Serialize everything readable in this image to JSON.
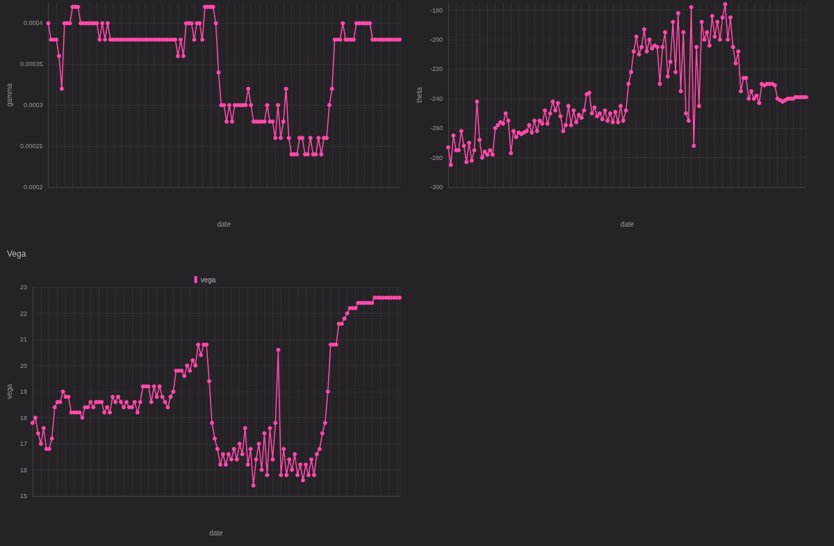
{
  "chart_data": [
    {
      "type": "line",
      "ylabel": "gamma",
      "xlabel": "date",
      "tick_labels": "y",
      "grid": true,
      "legend": false,
      "marker": "circle",
      "line_style": "solid",
      "ylim": [
        0.0002,
        0.000425
      ],
      "yticks": [
        0.0002,
        0.00025,
        0.0003,
        0.00035,
        0.0004
      ],
      "categories": [
        null,
        null,
        null,
        null,
        null,
        null,
        null,
        null,
        null,
        null,
        null,
        null,
        null,
        null,
        null,
        null,
        null,
        null,
        null,
        null,
        null,
        null,
        null,
        null,
        null,
        null,
        null,
        null,
        null,
        null,
        null,
        null,
        null,
        null,
        null,
        null,
        null,
        null,
        null,
        null,
        null,
        null,
        null,
        null,
        null,
        null,
        null,
        null,
        null,
        null,
        null,
        null,
        null,
        null,
        null,
        null,
        null,
        null,
        null,
        null,
        null,
        null,
        null,
        null,
        null,
        null,
        null,
        null,
        null,
        null,
        null,
        null,
        null,
        null,
        null,
        null,
        null,
        null,
        null,
        null,
        null,
        null,
        null,
        null,
        null,
        null,
        null,
        null,
        null,
        null,
        null,
        null,
        null,
        null,
        null,
        null,
        null,
        null,
        null,
        null,
        null,
        null,
        null,
        null,
        null,
        null,
        null,
        null,
        null,
        null,
        null,
        null,
        null,
        null,
        null,
        null,
        null,
        null,
        null,
        null,
        null,
        null,
        null,
        null,
        null,
        null,
        null,
        null,
        null,
        null,
        null
      ],
      "series": [
        {
          "color": "#ff4aa8",
          "values": [
            0.0004,
            0.00038,
            0.00038,
            0.00038,
            0.00036,
            0.00032,
            0.0004,
            0.0004,
            0.0004,
            0.00042,
            0.00042,
            0.00042,
            0.0004,
            0.0004,
            0.0004,
            0.0004,
            0.0004,
            0.0004,
            0.0004,
            0.00038,
            0.0004,
            0.00038,
            0.0004,
            0.00038,
            0.00038,
            0.00038,
            0.00038,
            0.00038,
            0.00038,
            0.00038,
            0.00038,
            0.00038,
            0.00038,
            0.00038,
            0.00038,
            0.00038,
            0.00038,
            0.00038,
            0.00038,
            0.00038,
            0.00038,
            0.00038,
            0.00038,
            0.00038,
            0.00038,
            0.00038,
            0.00038,
            0.00038,
            0.00036,
            0.00038,
            0.00036,
            0.0004,
            0.0004,
            0.0004,
            0.00038,
            0.0004,
            0.0004,
            0.00038,
            0.00042,
            0.00042,
            0.00042,
            0.00042,
            0.0004,
            0.00034,
            0.0003,
            0.0003,
            0.00028,
            0.0003,
            0.00028,
            0.0003,
            0.0003,
            0.0003,
            0.0003,
            0.0003,
            0.00032,
            0.0003,
            0.00028,
            0.00028,
            0.00028,
            0.00028,
            0.00028,
            0.0003,
            0.00028,
            0.00028,
            0.00026,
            0.0003,
            0.00026,
            0.00028,
            0.00032,
            0.00026,
            0.00024,
            0.00024,
            0.00024,
            0.00026,
            0.00026,
            0.00024,
            0.00024,
            0.00026,
            0.00024,
            0.00024,
            0.00026,
            0.00024,
            0.00026,
            0.00026,
            0.0003,
            0.00032,
            0.00038,
            0.00038,
            0.00038,
            0.0004,
            0.00038,
            0.00038,
            0.00038,
            0.00038,
            0.0004,
            0.0004,
            0.0004,
            0.0004,
            0.0004,
            0.0004,
            0.00038,
            0.00038,
            0.00038,
            0.00038,
            0.00038,
            0.00038,
            0.00038,
            0.00038,
            0.00038,
            0.00038,
            0.00038
          ]
        }
      ]
    },
    {
      "type": "line",
      "ylabel": "theta",
      "xlabel": "date",
      "tick_labels": "y",
      "grid": true,
      "legend": false,
      "marker": "circle",
      "line_style": "solid",
      "ylim": [
        -300,
        -175
      ],
      "yticks": [
        -300,
        -280,
        -260,
        -240,
        -220,
        -200,
        -180
      ],
      "categories": [
        null,
        null,
        null,
        null,
        null,
        null,
        null,
        null,
        null,
        null,
        null,
        null,
        null,
        null,
        null,
        null,
        null,
        null,
        null,
        null,
        null,
        null,
        null,
        null,
        null,
        null,
        null,
        null,
        null,
        null,
        null,
        null,
        null,
        null,
        null,
        null,
        null,
        null,
        null,
        null,
        null,
        null,
        null,
        null,
        null,
        null,
        null,
        null,
        null,
        null,
        null,
        null,
        null,
        null,
        null,
        null,
        null,
        null,
        null,
        null,
        null,
        null,
        null,
        null,
        null,
        null,
        null,
        null,
        null,
        null,
        null,
        null,
        null,
        null,
        null,
        null,
        null,
        null,
        null,
        null,
        null,
        null,
        null,
        null,
        null,
        null,
        null,
        null,
        null,
        null,
        null,
        null,
        null,
        null,
        null,
        null,
        null,
        null,
        null,
        null,
        null,
        null,
        null,
        null,
        null,
        null,
        null,
        null,
        null,
        null,
        null,
        null,
        null,
        null,
        null,
        null,
        null,
        null,
        null,
        null,
        null,
        null,
        null,
        null,
        null,
        null,
        null,
        null,
        null,
        null,
        null,
        null,
        null,
        null,
        null,
        null,
        null,
        null
      ],
      "series": [
        {
          "color": "#ff4aa8",
          "values": [
            -273,
            -285,
            -265,
            -275,
            -275,
            -262,
            -272,
            -283,
            -270,
            -282,
            -275,
            -242,
            -268,
            -280,
            -276,
            -278,
            -275,
            -278,
            -260,
            -258,
            -256,
            -257,
            -250,
            -255,
            -277,
            -262,
            -266,
            -263,
            -264,
            -263,
            -262,
            -258,
            -263,
            -255,
            -262,
            -255,
            -257,
            -248,
            -257,
            -250,
            -242,
            -248,
            -243,
            -252,
            -262,
            -258,
            -245,
            -258,
            -248,
            -256,
            -251,
            -253,
            -248,
            -237,
            -236,
            -250,
            -246,
            -252,
            -250,
            -254,
            -248,
            -255,
            -250,
            -256,
            -249,
            -256,
            -245,
            -255,
            -248,
            -230,
            -222,
            -208,
            -198,
            -210,
            -205,
            -193,
            -208,
            -200,
            -206,
            -204,
            -205,
            -230,
            -205,
            -195,
            -225,
            -215,
            -188,
            -222,
            -182,
            -235,
            -195,
            -250,
            -255,
            -178,
            -272,
            -205,
            -245,
            -188,
            -200,
            -195,
            -204,
            -184,
            -198,
            -188,
            -200,
            -185,
            -176,
            -200,
            -185,
            -205,
            -216,
            -208,
            -235,
            -226,
            -226,
            -240,
            -235,
            -240,
            -238,
            -243,
            -230,
            -231,
            -230,
            -230,
            -230,
            -231,
            -240,
            -241,
            -242,
            -241,
            -240,
            -240,
            -240,
            -239,
            -239,
            -239,
            -239,
            -239
          ]
        }
      ]
    },
    {
      "type": "line",
      "title": "Vega",
      "ylabel": "vega",
      "xlabel": "date",
      "tick_labels": "y",
      "grid": true,
      "legend": "top",
      "marker": "circle",
      "line_style": "solid",
      "ylim": [
        15,
        23
      ],
      "yticks": [
        15,
        16,
        17,
        18,
        19,
        20,
        21,
        22,
        23
      ],
      "categories": [
        null,
        null,
        null,
        null,
        null,
        null,
        null,
        null,
        null,
        null,
        null,
        null,
        null,
        null,
        null,
        null,
        null,
        null,
        null,
        null,
        null,
        null,
        null,
        null,
        null,
        null,
        null,
        null,
        null,
        null,
        null,
        null,
        null,
        null,
        null,
        null,
        null,
        null,
        null,
        null,
        null,
        null,
        null,
        null,
        null,
        null,
        null,
        null,
        null,
        null,
        null,
        null,
        null,
        null,
        null,
        null,
        null,
        null,
        null,
        null,
        null,
        null,
        null,
        null,
        null,
        null,
        null,
        null,
        null,
        null,
        null,
        null,
        null,
        null,
        null,
        null,
        null,
        null,
        null,
        null,
        null,
        null,
        null,
        null,
        null,
        null,
        null,
        null,
        null,
        null,
        null,
        null,
        null,
        null,
        null,
        null,
        null,
        null,
        null,
        null,
        null,
        null,
        null,
        null,
        null,
        null,
        null,
        null,
        null,
        null,
        null,
        null,
        null,
        null,
        null,
        null,
        null,
        null,
        null,
        null,
        null,
        null,
        null,
        null,
        null,
        null,
        null,
        null,
        null,
        null,
        null,
        null,
        null,
        null
      ],
      "series": [
        {
          "name": "vega",
          "color": "#ff4aa8",
          "values": [
            17.8,
            18.0,
            17.4,
            17.0,
            17.6,
            16.8,
            16.8,
            17.2,
            18.4,
            18.6,
            18.6,
            19.0,
            18.8,
            18.8,
            18.2,
            18.2,
            18.2,
            18.2,
            18.0,
            18.4,
            18.4,
            18.6,
            18.4,
            18.6,
            18.6,
            18.6,
            18.2,
            18.4,
            18.2,
            18.8,
            18.6,
            18.8,
            18.6,
            18.4,
            18.6,
            18.4,
            18.4,
            18.6,
            18.2,
            18.6,
            19.2,
            19.2,
            19.2,
            18.6,
            19.2,
            18.8,
            19.2,
            18.8,
            18.6,
            18.4,
            18.8,
            19.0,
            19.8,
            19.8,
            19.8,
            19.6,
            20.0,
            19.8,
            20.2,
            20.0,
            20.8,
            20.4,
            20.8,
            20.8,
            19.4,
            17.8,
            17.2,
            16.8,
            16.2,
            16.6,
            16.2,
            16.6,
            16.4,
            16.8,
            16.4,
            17.0,
            16.6,
            17.6,
            16.2,
            16.8,
            15.4,
            16.4,
            17.0,
            16.0,
            17.4,
            15.8,
            17.6,
            16.4,
            17.8,
            20.6,
            15.8,
            16.8,
            15.8,
            16.4,
            16.0,
            16.6,
            15.8,
            16.2,
            15.6,
            16.2,
            15.8,
            16.4,
            15.8,
            16.6,
            16.8,
            17.4,
            17.8,
            19.0,
            20.8,
            20.8,
            20.8,
            21.6,
            21.6,
            21.8,
            22.0,
            22.2,
            22.2,
            22.2,
            22.4,
            22.4,
            22.4,
            22.4,
            22.4,
            22.4,
            22.6,
            22.6,
            22.6,
            22.6,
            22.6,
            22.6,
            22.6,
            22.6,
            22.6,
            22.6
          ]
        }
      ]
    }
  ]
}
